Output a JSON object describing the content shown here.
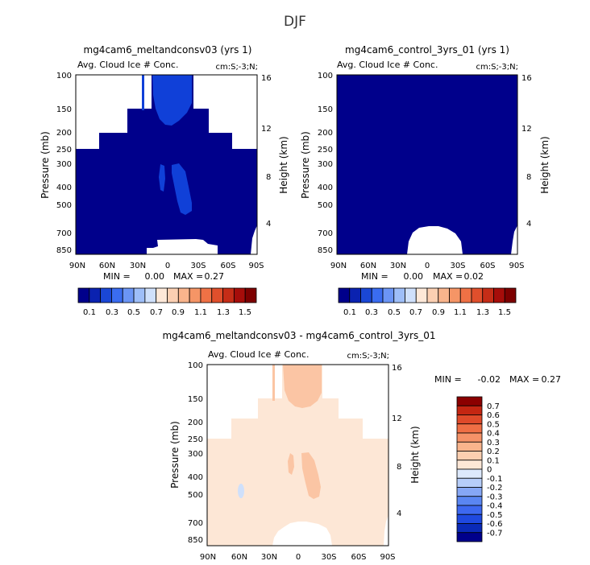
{
  "page_title": "DJF",
  "colors": {
    "levels": [
      "#00008b",
      "#0a22b0",
      "#1a47d6",
      "#3a6cf0",
      "#6b95f5",
      "#9ebef8",
      "#cfe0fb",
      "#fde8d8",
      "#fbcfb2",
      "#f9b48c",
      "#f59566",
      "#ef7145",
      "#e04f2c",
      "#c52d17",
      "#a60d0a",
      "#7d0000"
    ],
    "diff_levels": [
      "#00008b",
      "#0a2ab8",
      "#1f49e0",
      "#3d68f0",
      "#5a86f2",
      "#86a7f5",
      "#b6cdf9",
      "#dde9fc",
      "#fde7d6",
      "#fccfb0",
      "#f9b48c",
      "#f59268",
      "#ef6f45",
      "#df4a2a",
      "#c42612",
      "#8b0000"
    ],
    "no_data": "#ffffff"
  },
  "chart_data": [
    {
      "name": "panel-meltandconsv",
      "type": "heatmap",
      "title": "mg4cam6_meltandconsv03 (yrs 1)",
      "subtitle_left": "Avg. Cloud Ice # Conc.",
      "subtitle_right": "cm:S;-3;N;",
      "xlabel": "",
      "ylabel": "Pressure (mb)",
      "ylabel_right": "Height (km)",
      "x_ticks": [
        "90N",
        "60N",
        "30N",
        "0",
        "30S",
        "60S",
        "90S"
      ],
      "y_ticks": [
        "100",
        "150",
        "200",
        "250",
        "300",
        "400",
        "500",
        "700",
        "850"
      ],
      "y_right_ticks": [
        "16",
        "12",
        "8",
        "4"
      ],
      "xlim": [
        90,
        -90
      ],
      "ylim": [
        1000,
        100
      ],
      "min_label": "MIN =",
      "min_value": "0.00",
      "max_label": "MAX =",
      "max_value": "0.27",
      "approx_values": {
        "background": 0.05,
        "upper_tropical_plume": 0.27,
        "midlevel_blob": 0.25
      }
    },
    {
      "name": "panel-control",
      "type": "heatmap",
      "title": "mg4cam6_control_3yrs_01 (yrs 1)",
      "subtitle_left": "Avg. Cloud Ice # Conc.",
      "subtitle_right": "cm:S;-3;N;",
      "xlabel": "",
      "ylabel": "Pressure (mb)",
      "ylabel_right": "Height (km)",
      "x_ticks": [
        "90N",
        "60N",
        "30N",
        "0",
        "30S",
        "60S",
        "90S"
      ],
      "y_ticks": [
        "100",
        "150",
        "200",
        "250",
        "300",
        "400",
        "500",
        "700",
        "850"
      ],
      "y_right_ticks": [
        "16",
        "12",
        "8",
        "4"
      ],
      "xlim": [
        90,
        -90
      ],
      "ylim": [
        1000,
        100
      ],
      "min_label": "MIN =",
      "min_value": "0.00",
      "max_label": "MAX =",
      "max_value": "0.02",
      "approx_values": {
        "background": 0.01
      }
    },
    {
      "name": "panel-difference",
      "type": "heatmap",
      "title": "mg4cam6_meltandconsv03 - mg4cam6_control_3yrs_01",
      "subtitle_left": "Avg. Cloud Ice # Conc.",
      "subtitle_right": "cm:S;-3;N;",
      "xlabel": "",
      "ylabel": "Pressure (mb)",
      "ylabel_right": "Height (km)",
      "x_ticks": [
        "90N",
        "60N",
        "30N",
        "0",
        "30S",
        "60S",
        "90S"
      ],
      "y_ticks": [
        "100",
        "150",
        "200",
        "250",
        "300",
        "400",
        "500",
        "700",
        "850"
      ],
      "y_right_ticks": [
        "16",
        "12",
        "8",
        "4"
      ],
      "xlim": [
        90,
        -90
      ],
      "ylim": [
        1000,
        100
      ],
      "min_label": "MIN =",
      "min_value": "-0.02",
      "max_label": "MAX =",
      "max_value": "0.27",
      "approx_values": {
        "background": 0.05,
        "upper_tropical_plume": 0.2,
        "midlevel_blob": 0.2,
        "small_negative": -0.02
      }
    }
  ],
  "colorbars": {
    "horizontal": {
      "labels": [
        "0.1",
        "0.3",
        "0.5",
        "0.7",
        "0.9",
        "1.1",
        "1.3",
        "1.5"
      ]
    },
    "diff": {
      "labels": [
        "0.7",
        "0.6",
        "0.5",
        "0.4",
        "0.3",
        "0.2",
        "0.1",
        "0",
        "-0.1",
        "-0.2",
        "-0.3",
        "-0.4",
        "-0.5",
        "-0.6",
        "-0.7"
      ]
    }
  }
}
